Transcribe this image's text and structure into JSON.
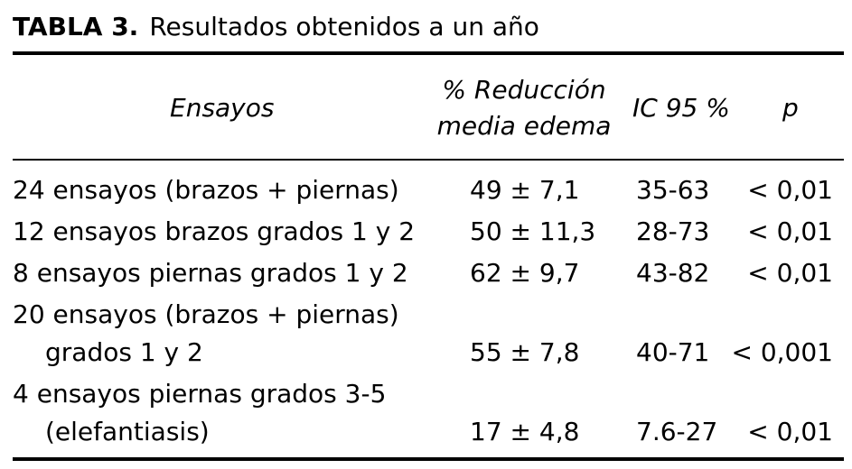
{
  "table": {
    "title_label": "TABLA 3.",
    "title_text": "Resultados obtenidos a un año",
    "headers": {
      "ensayos": "Ensayos",
      "reduccion_line1": "% Reducción",
      "reduccion_line2": "media edema",
      "ic": "IC 95 %",
      "p": "p"
    },
    "rows": [
      {
        "label_line1": "24 ensayos (brazos + piernas)",
        "label_line2": "",
        "reduccion": "49 ± 7,1",
        "ic": "35-63",
        "p": "< 0,01"
      },
      {
        "label_line1": "12 ensayos brazos grados 1 y 2",
        "label_line2": "",
        "reduccion": "50 ± 11,3",
        "ic": "28-73",
        "p": "< 0,01"
      },
      {
        "label_line1": "8 ensayos piernas grados 1 y 2",
        "label_line2": "",
        "reduccion": "62 ± 9,7",
        "ic": "43-82",
        "p": "< 0,01"
      },
      {
        "label_line1": "20 ensayos (brazos + piernas)",
        "label_line2": "grados 1 y 2",
        "reduccion": "55 ± 7,8",
        "ic": "40-71",
        "p": "< 0,001"
      },
      {
        "label_line1": "4 ensayos piernas grados 3-5",
        "label_line2": "(elefantiasis)",
        "reduccion": "17 ± 4,8",
        "ic": "7.6-27",
        "p": "< 0,01"
      }
    ]
  }
}
